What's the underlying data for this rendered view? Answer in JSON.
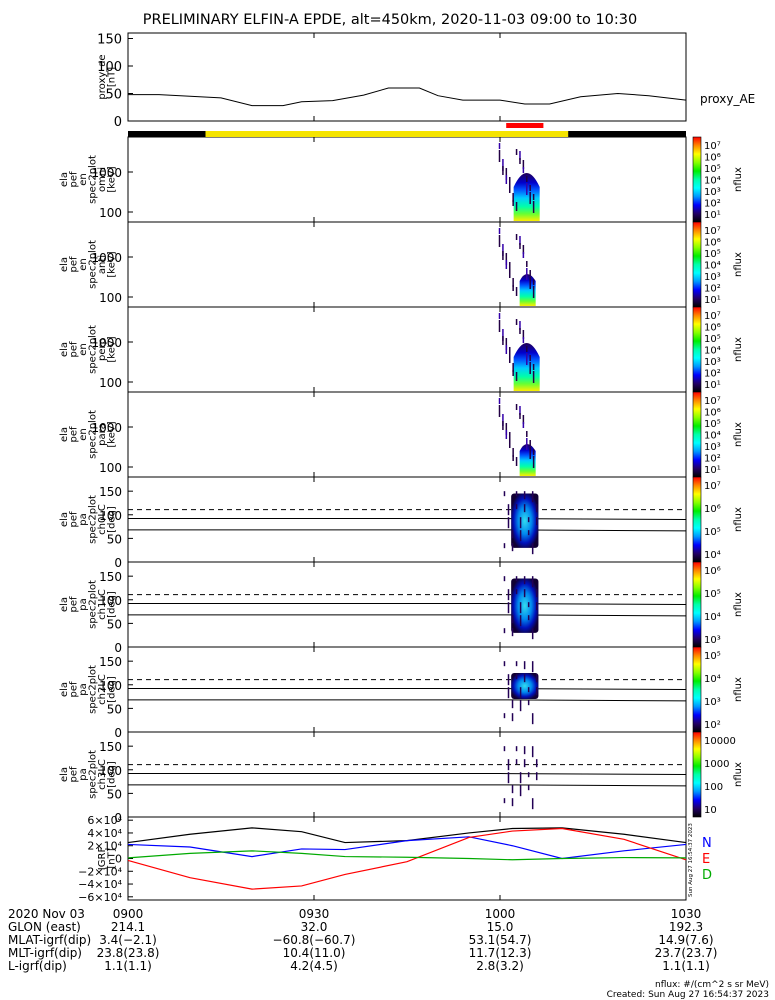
{
  "title": "PRELIMINARY ELFIN-A EPDE, alt=450km, 2020-11-03 09:00 to 10:30",
  "chart_data": [
    {
      "type": "line",
      "panel": "proxy_ae",
      "ylabel": [
        "proxy_ae",
        "[nT]"
      ],
      "yticks": [
        "150",
        "100",
        "50",
        "0"
      ],
      "ylim": [
        0,
        160
      ],
      "legend": "proxy_AE",
      "x_minutes": [
        0,
        5,
        10,
        15,
        20,
        25,
        28,
        33,
        38,
        42,
        47,
        50,
        54,
        57,
        60,
        64,
        68,
        73,
        79,
        84,
        90
      ],
      "values": [
        48,
        48,
        45,
        42,
        28,
        28,
        35,
        37,
        47,
        60,
        60,
        46,
        38,
        38,
        38,
        31,
        31,
        44,
        50,
        46,
        38
      ]
    },
    {
      "type": "heatmap",
      "panel": "spec_omni",
      "ylabel": [
        "ela",
        "pef",
        "en",
        "spec2plot",
        "omni",
        "[keV]"
      ],
      "yticks": [
        "1000",
        "100"
      ],
      "colorbar_label": "nflux",
      "colorbar_ticks": [
        "10⁷",
        "10⁶",
        "10⁵",
        "10⁴",
        "10³",
        "10²",
        "10¹"
      ],
      "intensity": "high"
    },
    {
      "type": "heatmap",
      "panel": "spec_anti",
      "ylabel": [
        "ela",
        "pef",
        "en",
        "spec2plot",
        "anti",
        "[keV]"
      ],
      "yticks": [
        "1000",
        "100"
      ],
      "colorbar_label": "nflux",
      "colorbar_ticks": [
        "10⁷",
        "10⁶",
        "10⁵",
        "10⁴",
        "10³",
        "10²",
        "10¹"
      ],
      "intensity": "low"
    },
    {
      "type": "heatmap",
      "panel": "spec_perp",
      "ylabel": [
        "ela",
        "pef",
        "en",
        "spec2plot",
        "perp",
        "[keV]"
      ],
      "yticks": [
        "1000",
        "100"
      ],
      "colorbar_label": "nflux",
      "colorbar_ticks": [
        "10⁷",
        "10⁶",
        "10⁵",
        "10⁴",
        "10³",
        "10²",
        "10¹"
      ],
      "intensity": "high"
    },
    {
      "type": "heatmap",
      "panel": "spec_para",
      "ylabel": [
        "ela",
        "pef",
        "en",
        "spec2plot",
        "para",
        "[keV]"
      ],
      "yticks": [
        "1000",
        "100"
      ],
      "colorbar_label": "nflux",
      "colorbar_ticks": [
        "10⁷",
        "10⁶",
        "10⁵",
        "10⁴",
        "10³",
        "10²",
        "10¹"
      ],
      "intensity": "low"
    },
    {
      "type": "heatmap",
      "panel": "pa_ch0",
      "ylabel": [
        "ela",
        "pef",
        "pa",
        "spec2plot",
        "ch0LC",
        "[deg]"
      ],
      "yticks": [
        "150",
        "100",
        "50",
        "0"
      ],
      "ylim": [
        0,
        180
      ],
      "colorbar_label": "nflux",
      "colorbar_ticks": [
        "10⁷",
        "10⁶",
        "10⁵",
        "10⁴"
      ]
    },
    {
      "type": "heatmap",
      "panel": "pa_ch1",
      "ylabel": [
        "ela",
        "pef",
        "pa",
        "spec2plot",
        "ch1LC",
        "[deg]"
      ],
      "yticks": [
        "150",
        "100",
        "50",
        "0"
      ],
      "ylim": [
        0,
        180
      ],
      "colorbar_label": "nflux",
      "colorbar_ticks": [
        "10⁶",
        "10⁵",
        "10⁴",
        "10³"
      ]
    },
    {
      "type": "heatmap",
      "panel": "pa_ch2",
      "ylabel": [
        "ela",
        "pef",
        "pa",
        "spec2plot",
        "ch2LC",
        "[deg]"
      ],
      "yticks": [
        "150",
        "100",
        "50",
        "0"
      ],
      "ylim": [
        0,
        180
      ],
      "colorbar_label": "nflux",
      "colorbar_ticks": [
        "10⁵",
        "10⁴",
        "10³",
        "10²"
      ]
    },
    {
      "type": "heatmap",
      "panel": "pa_ch3",
      "ylabel": [
        "ela",
        "pef",
        "pa",
        "spec2plot",
        "ch3LC",
        "[deg]"
      ],
      "yticks": [
        "150",
        "100",
        "50",
        "0"
      ],
      "ylim": [
        0,
        180
      ],
      "colorbar_label": "nflux",
      "colorbar_ticks": [
        "10000",
        "1000",
        "100",
        "10"
      ]
    },
    {
      "type": "line",
      "panel": "igrf",
      "ylabel": [
        "IGRF",
        "[nT]"
      ],
      "yticks": [
        "6×10⁴",
        "4×10⁴",
        "2×10⁴",
        "0",
        "−2×10⁴",
        "−4×10⁴",
        "−6×10⁴"
      ],
      "ylim": [
        -65000,
        65000
      ],
      "series_labels": [
        "N",
        "E",
        "D"
      ],
      "x_minutes": [
        0,
        10,
        20,
        28,
        35,
        45,
        55,
        62,
        70,
        80,
        90
      ],
      "series": [
        {
          "color": "#000000",
          "values": [
            25000,
            38000,
            48000,
            42000,
            25000,
            28000,
            40000,
            47000,
            48000,
            38000,
            25000
          ]
        },
        {
          "color": "#0000ff",
          "values": [
            22000,
            18000,
            3000,
            15000,
            14000,
            28000,
            34000,
            20000,
            0,
            12000,
            22000
          ]
        },
        {
          "color": "#ff0000",
          "values": [
            -3000,
            -30000,
            -48000,
            -43000,
            -25000,
            -5000,
            33000,
            43000,
            47000,
            30000,
            -2000
          ]
        },
        {
          "color": "#00aa00",
          "values": [
            1000,
            8000,
            12000,
            8000,
            3000,
            2000,
            0,
            -2000,
            0,
            1500,
            1000
          ]
        }
      ]
    }
  ],
  "science_zone_bar": {
    "black": "#000000",
    "yellow": "#f5e400",
    "red": "#ff0000",
    "yellow_start_min": 12.5,
    "yellow_end_min": 71,
    "red_start_min": 61,
    "red_end_min": 67
  },
  "xticks": [
    "0900",
    "0930",
    "1000",
    "1030"
  ],
  "xticks_minutes": [
    0,
    30,
    60,
    90
  ],
  "ephemeris": {
    "labels": [
      "2020 Nov 03",
      "GLON (east)",
      "MLAT-igrf(dip)",
      "MLT-igrf(dip)",
      "L-igrf(dip)"
    ],
    "first_col": [
      "214.1",
      "3.4(−2.1)",
      "23.8(23.8)",
      "1.1(1.1)"
    ],
    "cols": [
      [
        "32.0",
        "−60.8(−60.7)",
        "10.4(11.0)",
        "4.2(4.5)"
      ],
      [
        "15.0",
        "53.1(54.7)",
        "11.7(12.3)",
        "2.8(3.2)"
      ],
      [
        "192.3",
        "14.9(7.6)",
        "23.7(23.7)",
        "1.1(1.1)"
      ]
    ]
  },
  "footer": {
    "units": "nflux: #/(cm^2 s sr MeV)",
    "created": "Created: Sun Aug 27 16:54:37 2023",
    "side_stamp": "Sun Aug 27 16:54:37 2023"
  }
}
